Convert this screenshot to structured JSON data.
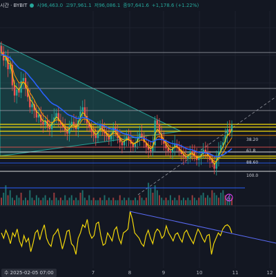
{
  "header": {
    "symbol_suffix": "시간 · BYBIT",
    "open": "시96,463.0",
    "high": "고97,961.1",
    "low": "저96,086.1",
    "close": "종97,641.6",
    "change": "+1,178.6 (+1.22%)"
  },
  "xaxis": {
    "start_label": "수 2025-02-05  07:00",
    "ticks": [
      "7",
      "8",
      "9",
      "10",
      "11",
      "12"
    ]
  },
  "fib_levels": [
    {
      "label": "38.20",
      "color": "#ffffff"
    },
    {
      "label": "61.8",
      "color": "#ef5350"
    },
    {
      "label": "88.60",
      "color": "#2962ff"
    },
    {
      "label": "100.0",
      "color": "#ffffff"
    }
  ],
  "colors": {
    "candle_up": "#26a69a",
    "candle_down": "#ef5350",
    "ema_blue": "#2962ff",
    "ema_orange": "#ff9800",
    "ema_yellow": "#f5d90a",
    "triangle": "#26a69a",
    "oscillator": "#f5d90a",
    "trendline": "#5b6cf7"
  },
  "chart_data": [
    {
      "type": "candlestick",
      "title": "",
      "xlabel": "",
      "ylabel": "",
      "x_ticks": [
        "7",
        "8",
        "9",
        "10",
        "11",
        "12"
      ],
      "close": [
        0.78,
        0.72,
        0.74,
        0.66,
        0.69,
        0.55,
        0.48,
        0.52,
        0.5,
        0.58,
        0.6,
        0.53,
        0.47,
        0.4,
        0.42,
        0.38,
        0.33,
        0.35,
        0.3,
        0.28,
        0.31,
        0.27,
        0.25,
        0.3,
        0.33,
        0.36,
        0.31,
        0.28,
        0.26,
        0.24,
        0.22,
        0.27,
        0.3,
        0.28,
        0.25,
        0.31,
        0.37,
        0.4,
        0.34,
        0.29,
        0.26,
        0.23,
        0.21,
        0.19,
        0.24,
        0.28,
        0.25,
        0.22,
        0.2,
        0.18,
        0.22,
        0.26,
        0.23,
        0.19,
        0.16,
        0.14,
        0.17,
        0.2,
        0.18,
        0.15,
        0.13,
        0.16,
        0.19,
        0.22,
        0.2,
        0.16,
        0.13,
        0.11,
        0.1,
        0.14,
        0.31,
        0.28,
        0.22,
        0.18,
        0.15,
        0.12,
        0.1,
        0.09,
        0.12,
        0.15,
        0.13,
        0.1,
        0.08,
        0.06,
        0.05,
        0.07,
        0.1,
        0.09,
        0.06,
        0.04,
        0.06,
        0.08,
        0.11,
        0.09,
        0.07,
        0.04,
        0.02,
        -0.02,
        0.05,
        0.1,
        0.14,
        0.16,
        0.21,
        0.25,
        0.23,
        0.28
      ],
      "overlays": [
        "ema_blue",
        "ema_orange",
        "ema_yellow",
        "triangle",
        "fib_levels"
      ]
    },
    {
      "type": "bar",
      "title": "volume",
      "values": [
        0.3,
        0.5,
        0.8,
        0.4,
        0.6,
        0.3,
        0.2,
        0.4,
        0.3,
        0.5,
        0.2,
        0.3,
        0.2,
        0.6,
        0.3,
        0.2,
        0.4,
        0.3,
        0.2,
        0.3,
        0.4,
        0.2,
        0.3,
        0.2,
        0.5,
        0.3,
        0.2,
        0.3,
        0.2,
        0.4,
        0.2,
        0.3,
        0.4,
        0.2,
        0.3,
        0.2,
        0.5,
        0.6,
        0.3,
        0.2,
        0.4,
        0.2,
        0.3,
        0.2,
        0.2,
        0.3,
        0.2,
        0.4,
        0.2,
        0.3,
        0.2,
        0.3,
        0.2,
        0.2,
        0.4,
        0.2,
        0.3,
        0.2,
        0.3,
        0.2,
        0.2,
        0.3,
        0.2,
        0.4,
        0.3,
        0.2,
        0.3,
        0.9,
        0.7,
        0.5,
        0.8,
        0.6,
        0.4,
        0.3,
        0.2,
        0.3,
        0.2,
        0.4,
        0.2,
        0.3,
        0.2,
        0.4,
        0.2,
        0.3,
        0.2,
        0.3,
        0.2,
        0.4,
        0.3,
        0.2,
        0.3,
        0.4,
        0.5,
        0.3,
        0.4,
        0.3,
        0.6,
        0.5,
        0.4,
        0.3,
        0.5,
        0.6,
        0.4,
        0.3,
        0.4,
        0.3
      ]
    },
    {
      "type": "line",
      "title": "oscillator",
      "values": [
        0.55,
        0.45,
        0.6,
        0.5,
        0.35,
        0.55,
        0.48,
        0.62,
        0.4,
        0.3,
        0.5,
        0.38,
        0.45,
        0.2,
        0.35,
        0.55,
        0.6,
        0.42,
        0.58,
        0.7,
        0.45,
        0.35,
        0.3,
        0.5,
        0.55,
        0.62,
        0.45,
        0.25,
        0.4,
        0.58,
        0.6,
        0.35,
        0.3,
        0.15,
        0.45,
        0.55,
        0.7,
        0.65,
        0.8,
        0.55,
        0.45,
        0.5,
        0.72,
        0.75,
        0.5,
        0.32,
        0.35,
        0.55,
        0.48,
        0.4,
        0.6,
        0.66,
        0.45,
        0.35,
        0.55,
        0.58,
        0.62,
        0.95,
        0.8,
        0.55,
        0.5,
        0.45,
        0.35,
        0.3,
        0.5,
        0.6,
        0.45,
        0.35,
        0.55,
        0.62,
        0.58,
        0.45,
        0.5,
        0.68,
        0.55,
        0.48,
        0.4,
        0.52,
        0.55,
        0.45,
        0.38,
        0.55,
        0.6,
        0.5,
        0.42,
        0.35,
        0.5,
        0.62,
        0.55,
        0.45,
        0.38,
        0.5,
        0.52,
        0.15,
        0.35,
        0.45,
        0.55,
        0.5,
        0.62,
        0.68,
        0.7,
        0.66,
        0.55
      ]
    }
  ]
}
